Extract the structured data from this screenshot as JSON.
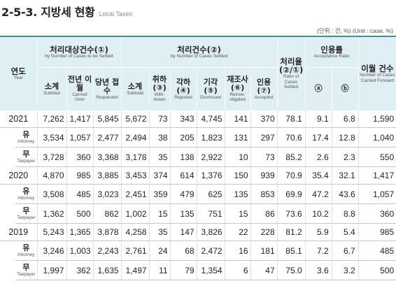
{
  "title": {
    "main": "2-5-3. 지방세 현황",
    "sub": "Local Taxes"
  },
  "unit_note": "(단위 : 건, %) (Unit : case, %)",
  "header": {
    "year": {
      "ko": "연도",
      "en": "Year"
    },
    "group_target": {
      "ko": "처리대상건수(①)",
      "en": "by Number of Cases to be Settled"
    },
    "group_processed": {
      "ko": "처리건수(②)",
      "en": "by Number of Cases Settled"
    },
    "rate": {
      "ko": "처리율 (②/①)",
      "en": "Ratio of Cases Settled"
    },
    "acceptance": {
      "ko": "인용률",
      "en": "Acceptance Ratio"
    },
    "carried": {
      "ko": "이월 건수",
      "en": "Number of Cases Carried Forward"
    },
    "sub_subtotal": {
      "ko": "소계",
      "en": "Subtotal"
    },
    "sub_prev": {
      "ko": "전년 이월",
      "en": "Carried Over"
    },
    "sub_curr": {
      "ko": "당년 접수",
      "en": "Requested"
    },
    "sub_subtotal2": {
      "ko": "소계",
      "en": "Subtotal"
    },
    "sub_withdrawn": {
      "ko": "취하 (③)",
      "en": "With-drawn"
    },
    "sub_rejected": {
      "ko": "각하 (④)",
      "en": "Rejected"
    },
    "sub_dismissed": {
      "ko": "기각 (⑤)",
      "en": "Dismissed"
    },
    "sub_reinvest": {
      "ko": "재조사 (⑥)",
      "en": "Reinve-stigated"
    },
    "sub_accepted": {
      "ko": "인용 (⑦)",
      "en": "Accepted"
    },
    "sub_a": "ⓐ",
    "sub_b": "ⓑ"
  },
  "rows": [
    {
      "kind": "year",
      "label": "2021",
      "values": [
        "7,262",
        "1,417",
        "5,845",
        "5,672",
        "73",
        "343",
        "4,745",
        "141",
        "370",
        "78.1",
        "9.1",
        "6.8",
        "1,590"
      ]
    },
    {
      "kind": "sub",
      "label_ko": "유",
      "label_en": "Attorney",
      "values": [
        "3,534",
        "1,057",
        "2,477",
        "2,494",
        "38",
        "205",
        "1,823",
        "131",
        "297",
        "70.6",
        "17.4",
        "12.8",
        "1,040"
      ]
    },
    {
      "kind": "sub",
      "label_ko": "무",
      "label_en": "Taxpayer",
      "values": [
        "3,728",
        "360",
        "3,368",
        "3,178",
        "35",
        "138",
        "2,922",
        "10",
        "73",
        "85.2",
        "2.6",
        "2.3",
        "550"
      ]
    },
    {
      "kind": "year",
      "label": "2020",
      "values": [
        "4,870",
        "985",
        "3,885",
        "3,453",
        "374",
        "614",
        "1,376",
        "150",
        "939",
        "70.9",
        "35.4",
        "32.1",
        "1,417"
      ]
    },
    {
      "kind": "sub",
      "label_ko": "유",
      "label_en": "Attorney",
      "values": [
        "3,508",
        "485",
        "3,023",
        "2,451",
        "359",
        "479",
        "625",
        "135",
        "853",
        "69.9",
        "47.2",
        "43.6",
        "1,057"
      ]
    },
    {
      "kind": "sub",
      "label_ko": "무",
      "label_en": "Taxpayer",
      "values": [
        "1,362",
        "500",
        "862",
        "1,002",
        "15",
        "135",
        "751",
        "15",
        "86",
        "73.6",
        "10.2",
        "8.8",
        "360"
      ]
    },
    {
      "kind": "year",
      "label": "2019",
      "values": [
        "5,243",
        "1,365",
        "3,878",
        "4,258",
        "35",
        "147",
        "3,826",
        "22",
        "228",
        "81.2",
        "5.9",
        "5.4",
        "985"
      ]
    },
    {
      "kind": "sub",
      "label_ko": "유",
      "label_en": "Attorney",
      "values": [
        "3,246",
        "1,003",
        "2,243",
        "2,761",
        "24",
        "68",
        "2,472",
        "16",
        "181",
        "85.1",
        "7.2",
        "6.7",
        "485"
      ]
    },
    {
      "kind": "sub",
      "label_ko": "무",
      "label_en": "Taxpayer",
      "values": [
        "1,997",
        "362",
        "1,635",
        "1,497",
        "11",
        "79",
        "1,354",
        "6",
        "47",
        "75.0",
        "3.6",
        "3.2",
        "500"
      ]
    }
  ]
}
